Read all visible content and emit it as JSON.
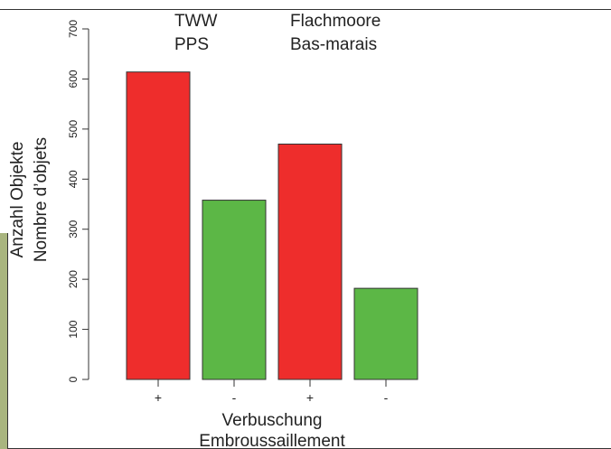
{
  "colors": {
    "plus": "#ee2d2c",
    "minus": "#5cb746",
    "olive": "#a9b57f",
    "frame": "#333333"
  },
  "chart_data": {
    "type": "bar",
    "categories": [
      "+",
      "-",
      "+",
      "-"
    ],
    "values": [
      614,
      358,
      470,
      182
    ],
    "bar_colors": [
      "#ee2d2c",
      "#5cb746",
      "#ee2d2c",
      "#5cb746"
    ],
    "ylim": [
      0,
      700
    ],
    "yticks": [
      0,
      100,
      200,
      300,
      400,
      500,
      600,
      700
    ],
    "ylabel_line1": "Anzahl Objekte",
    "ylabel_line2": "Nombre d’objets",
    "xlabel_line1": "Verbuschung",
    "xlabel_line2": "Embroussaillement",
    "group_labels": [
      {
        "line1": "TWW",
        "line2": "PPS"
      },
      {
        "line1": "Flachmoore",
        "line2": "Bas-marais"
      }
    ],
    "grid": false
  }
}
